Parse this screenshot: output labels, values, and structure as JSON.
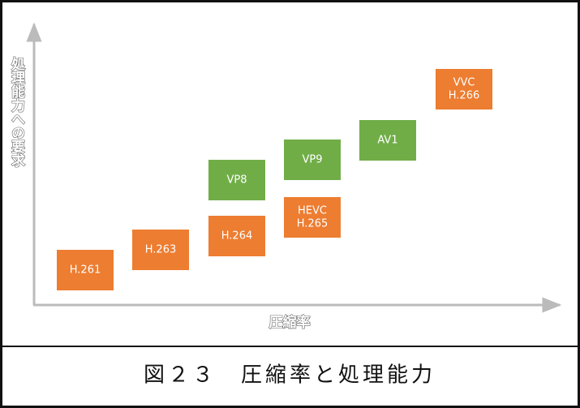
{
  "axes": {
    "x_label": "圧縮率",
    "y_label": "処理能力への要求"
  },
  "nodes": [
    {
      "lines": [
        "H.261"
      ],
      "kind": "orange"
    },
    {
      "lines": [
        "H.263"
      ],
      "kind": "orange"
    },
    {
      "lines": [
        "H.264"
      ],
      "kind": "orange"
    },
    {
      "lines": [
        "VP8"
      ],
      "kind": "green"
    },
    {
      "lines": [
        "HEVC",
        "H.265"
      ],
      "kind": "orange"
    },
    {
      "lines": [
        "VP9"
      ],
      "kind": "green"
    },
    {
      "lines": [
        "AV1"
      ],
      "kind": "green"
    },
    {
      "lines": [
        "VVC",
        "H.266"
      ],
      "kind": "orange"
    }
  ],
  "caption": "図２３　圧縮率と処理能力"
}
